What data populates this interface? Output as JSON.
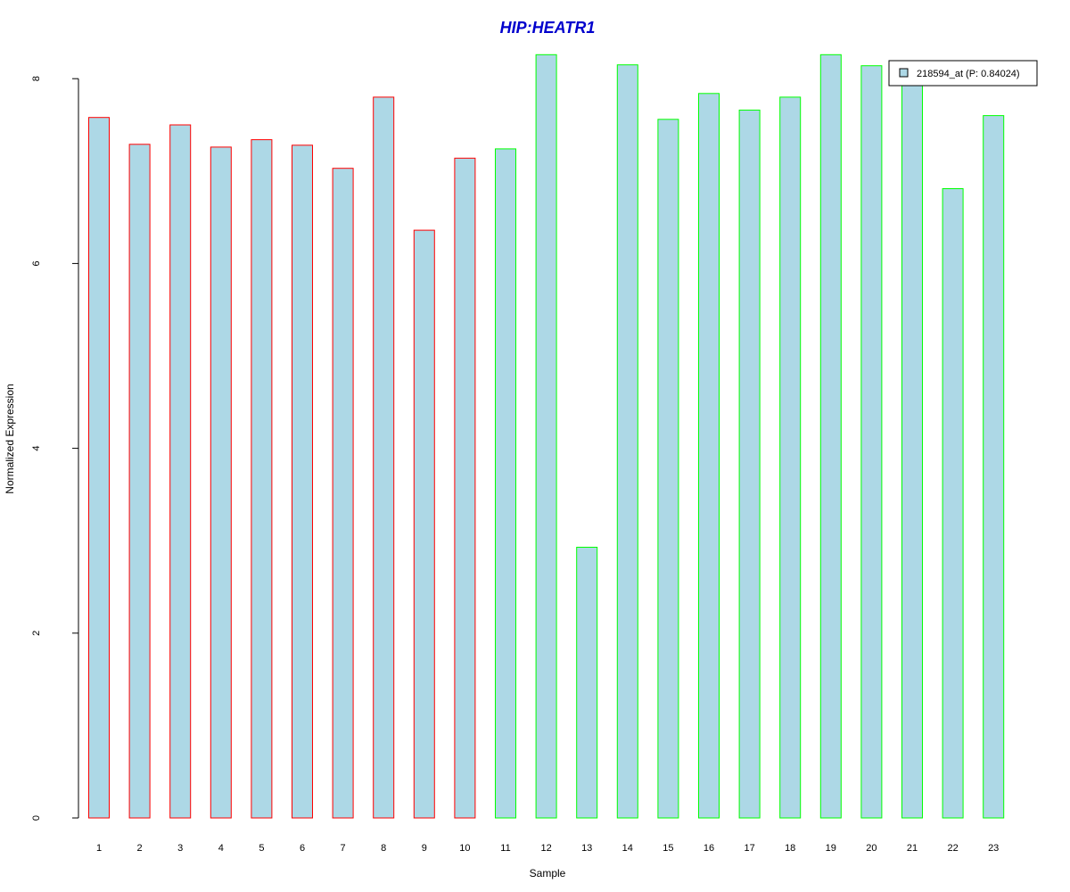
{
  "chart_data": {
    "type": "bar",
    "title": "HIP:HEATR1",
    "xlabel": "Sample",
    "ylabel": "Normalized Expression",
    "categories": [
      "1",
      "2",
      "3",
      "4",
      "5",
      "6",
      "7",
      "8",
      "9",
      "10",
      "11",
      "12",
      "13",
      "14",
      "15",
      "16",
      "17",
      "18",
      "19",
      "20",
      "21",
      "22",
      "23"
    ],
    "series": [
      {
        "name": "218594_at (P: 0.84024)",
        "values": [
          7.58,
          7.29,
          7.5,
          7.26,
          7.34,
          7.28,
          7.03,
          7.8,
          6.36,
          7.14,
          7.24,
          8.26,
          2.93,
          8.15,
          7.56,
          7.84,
          7.66,
          7.8,
          8.26,
          8.14,
          7.95,
          6.81,
          7.6
        ]
      }
    ],
    "bar_border_colors": [
      "#ff0000",
      "#ff0000",
      "#ff0000",
      "#ff0000",
      "#ff0000",
      "#ff0000",
      "#ff0000",
      "#ff0000",
      "#ff0000",
      "#ff0000",
      "#00ff00",
      "#00ff00",
      "#00ff00",
      "#00ff00",
      "#00ff00",
      "#00ff00",
      "#00ff00",
      "#00ff00",
      "#00ff00",
      "#00ff00",
      "#00ff00",
      "#00ff00",
      "#00ff00"
    ],
    "fill_color": "#add8e6",
    "title_color": "#0000cd",
    "yticks": [
      0,
      2,
      4,
      6,
      8
    ],
    "ylim": [
      0,
      8.3
    ],
    "legend_position": "top-right",
    "grid": false
  }
}
